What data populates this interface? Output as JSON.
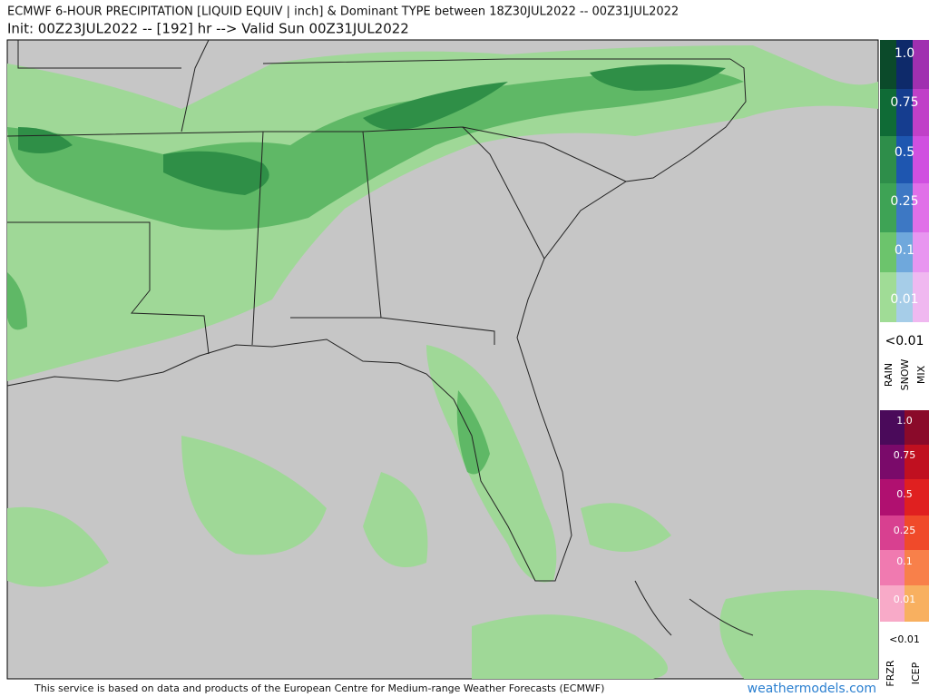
{
  "header": {
    "title": "ECMWF 6-HOUR PRECIPITATION [LIQUID EQUIV | inch] & Dominant TYPE between 18Z30JUL2022 -- 00Z31JUL2022",
    "subtitle": "Init: 00Z23JUL2022 -- [192] hr --> Valid Sun 00Z31JUL2022"
  },
  "legend_precip": {
    "levels": [
      "1.0",
      "0.75",
      "0.5",
      "0.25",
      "0.1",
      "0.01"
    ],
    "below": "<0.01",
    "types": [
      "RAIN",
      "SNOW",
      "MIX"
    ]
  },
  "legend_ice": {
    "levels": [
      "1.0",
      "0.75",
      "0.5",
      "0.25",
      "0.1",
      "0.01"
    ],
    "below": "<0.01",
    "types": [
      "FRZR",
      "ICEP"
    ]
  },
  "footer": {
    "credit": "This service is based on data and products of the European Centre for Medium-range Weather Forecasts (ECMWF)",
    "site": "weathermodels.com"
  }
}
